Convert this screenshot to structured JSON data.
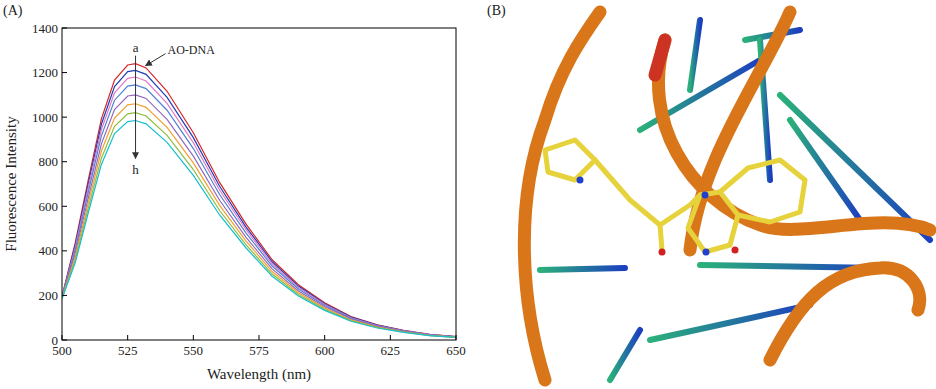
{
  "chart_data": {
    "type": "line",
    "panel_label": "(A)",
    "x_label": "Wavelength (nm)",
    "y_label": "Fluorescence Intensity",
    "x": [
      500,
      505,
      510,
      515,
      520,
      525,
      528,
      532,
      540,
      550,
      560,
      570,
      580,
      590,
      600,
      610,
      620,
      630,
      640,
      650
    ],
    "series": [
      {
        "color": "#d62728",
        "values": [
          195,
          434,
          719,
          992,
          1166,
          1234,
          1240,
          1221,
          1116,
          930,
          707,
          521,
          360,
          248,
          167,
          105,
          68,
          43,
          25,
          15
        ]
      },
      {
        "color": "#1f3fb4",
        "values": [
          193,
          424,
          702,
          968,
          1137,
          1204,
          1210,
          1192,
          1089,
          908,
          690,
          508,
          351,
          242,
          163,
          103,
          67,
          42,
          24,
          15
        ]
      },
      {
        "color": "#e377c2",
        "values": [
          192,
          413,
          684,
          944,
          1109,
          1174,
          1180,
          1162,
          1062,
          885,
          673,
          496,
          342,
          236,
          159,
          100,
          65,
          41,
          24,
          14
        ]
      },
      {
        "color": "#4f81d4",
        "values": [
          190,
          401,
          664,
          916,
          1076,
          1139,
          1145,
          1128,
          1031,
          859,
          653,
          481,
          332,
          229,
          155,
          97,
          63,
          40,
          23,
          14
        ]
      },
      {
        "color": "#9467bd",
        "values": [
          189,
          385,
          638,
          880,
          1034,
          1095,
          1100,
          1084,
          990,
          825,
          627,
          462,
          319,
          220,
          149,
          94,
          61,
          39,
          22,
          13
        ]
      },
      {
        "color": "#f0a030",
        "values": [
          188,
          371,
          615,
          848,
          996,
          1055,
          1060,
          1044,
          954,
          795,
          604,
          445,
          307,
          212,
          143,
          90,
          58,
          37,
          21,
          13
        ]
      },
      {
        "color": "#8fbc3f",
        "values": [
          187,
          357,
          592,
          816,
          959,
          1015,
          1020,
          1005,
          918,
          765,
          581,
          428,
          296,
          204,
          138,
          87,
          56,
          36,
          20,
          12
        ]
      },
      {
        "color": "#17becf",
        "values": [
          186,
          345,
          571,
          788,
          926,
          980,
          985,
          970,
          887,
          739,
          561,
          414,
          286,
          197,
          133,
          84,
          54,
          34,
          20,
          12
        ]
      }
    ],
    "annotations": {
      "first": "a",
      "last": "h",
      "arrow_label": "AO-DNA"
    },
    "xlim": [
      500,
      650
    ],
    "xticks": [
      500,
      525,
      550,
      575,
      600,
      625,
      650
    ],
    "ylim": [
      0,
      1400
    ],
    "yticks": [
      0,
      200,
      400,
      600,
      800,
      1000,
      1200,
      1400
    ],
    "grid": false
  },
  "figure_b": {
    "panel_label": "(B)"
  }
}
